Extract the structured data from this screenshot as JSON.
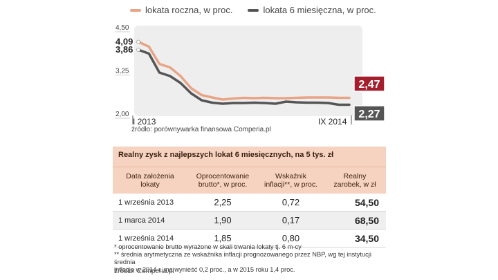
{
  "legend": [
    {
      "name": "lokata roczna, w proc.",
      "color": "#e8a487"
    },
    {
      "name": "lokata 6 miesięczna, w proc.",
      "color": "#555555"
    }
  ],
  "chart_data": {
    "type": "line",
    "xlim": [
      0,
      20
    ],
    "ylim": [
      2.0,
      4.5
    ],
    "yticks": [
      "4,50",
      "3,25",
      "2,00"
    ],
    "xtick_start": "I 2013",
    "xtick_end": "IX 2014",
    "x": [
      0,
      1,
      2,
      3,
      4,
      5,
      6,
      7,
      8,
      9,
      10,
      11,
      12,
      13,
      14,
      15,
      16,
      17,
      18,
      19,
      20
    ],
    "series": [
      {
        "name": "lokata roczna, w proc.",
        "color": "#e8a487",
        "values": [
          4.09,
          3.95,
          3.45,
          3.35,
          3.1,
          2.75,
          2.55,
          2.48,
          2.42,
          2.45,
          2.47,
          2.46,
          2.47,
          2.46,
          2.46,
          2.47,
          2.48,
          2.48,
          2.48,
          2.47,
          2.47
        ]
      },
      {
        "name": "lokata 6 miesięczna, w proc.",
        "color": "#555555",
        "values": [
          3.86,
          3.75,
          3.2,
          3.1,
          2.9,
          2.6,
          2.4,
          2.33,
          2.3,
          2.32,
          2.32,
          2.33,
          2.32,
          2.3,
          2.36,
          2.34,
          2.33,
          2.33,
          2.32,
          2.27,
          2.27
        ]
      }
    ],
    "start_labels": [
      "4,09",
      "3,86"
    ],
    "end_labels": [
      {
        "text": "2,47",
        "color": "#a31f2e"
      },
      {
        "text": "2,27",
        "color": "#555555"
      }
    ]
  },
  "source1": "źródło: porównywarka finansowa Comperia.pl",
  "table": {
    "title": "Realny zysk  z najlepszych lokat 6 miesięcznych, na 5 tys. zł",
    "headers": [
      [
        "Data założenia",
        "lokaty"
      ],
      [
        "Oprocentowanie",
        "brutto*, w proc."
      ],
      [
        "Wskaźnik",
        "inflacji**, w proc."
      ],
      [
        "Realny",
        "zarobek, w zł"
      ]
    ],
    "rows": [
      [
        "1 września 2013",
        "2,25",
        "0,72",
        "54,50"
      ],
      [
        "1 marca 2014",
        "1,90",
        "0,17",
        "68,50"
      ],
      [
        "1 września 2014",
        "1,85",
        "0,80",
        "34,50"
      ]
    ]
  },
  "notes": [
    "* oprocentowanie brutto wyrażone w skali trwania lokaty tj. 6 m-cy",
    "** średnia arytmetyczna ze wskaźnika inflacji prognozowanego przez NBP, wg tej instytucji średnia",
    "inflacja w 2014 r. ma wynieść 0,2 proc., a w 2015 roku 1,4 proc."
  ],
  "source2": "źródło: Comperia.pl"
}
